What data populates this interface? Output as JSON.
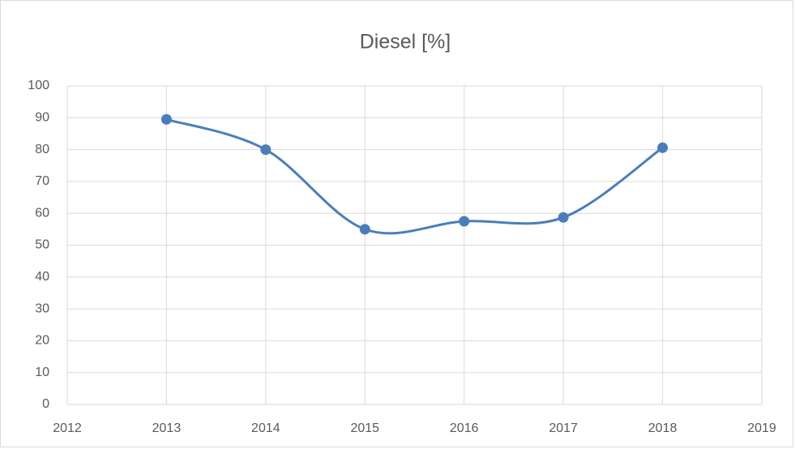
{
  "chart_data": {
    "type": "line",
    "title": "Diesel [%]",
    "x": [
      2013,
      2014,
      2015,
      2016,
      2017,
      2018
    ],
    "series": [
      {
        "color": "#4a7ebb",
        "values": [
          89.5,
          80,
          55,
          57.5,
          58.7,
          80.6
        ]
      }
    ],
    "xlim": [
      2012,
      2019
    ],
    "xticks": [
      2012,
      2013,
      2014,
      2015,
      2016,
      2017,
      2018,
      2019
    ],
    "ylim": [
      0,
      100
    ],
    "yticks": [
      0,
      10,
      20,
      30,
      40,
      50,
      60,
      70,
      80,
      90,
      100
    ],
    "grid": true,
    "smooth": true,
    "markers": true
  }
}
